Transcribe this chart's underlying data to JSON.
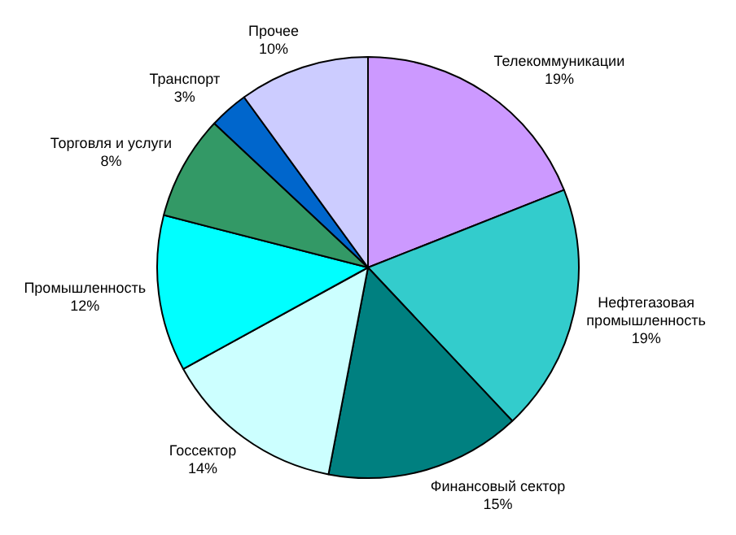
{
  "chart_data": {
    "type": "pie",
    "categories": [
      "Телекоммуникации",
      "Нефтегазовая промышленность",
      "Финансовый сектор",
      "Госсектор",
      "Промышленность",
      "Торговля и услуги",
      "Транспорт",
      "Прочее"
    ],
    "values": [
      19,
      19,
      15,
      14,
      12,
      8,
      3,
      10
    ],
    "colors": [
      "#cc99ff",
      "#33cccc",
      "#008080",
      "#ccffff",
      "#00ffff",
      "#339966",
      "#0066cc",
      "#ccccff"
    ],
    "value_labels": [
      "19%",
      "19%",
      "15%",
      "14%",
      "12%",
      "8%",
      "3%",
      "10%"
    ],
    "legend": false
  }
}
